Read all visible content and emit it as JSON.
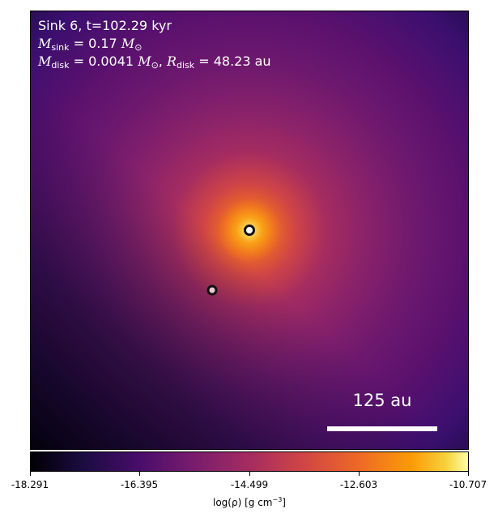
{
  "info": {
    "line1": "Sink 6, t=102.29 kyr",
    "m_sink_label": "M",
    "m_sink_sub": "sink",
    "m_sink_value": " = 0.17 ",
    "m_sun_symbol": "M",
    "sun_sub": "⊙",
    "m_disk_label": "M",
    "m_disk_sub": "disk",
    "m_disk_value": " = 0.0041 ",
    "r_disk_sep": ", ",
    "r_disk_label": "R",
    "r_disk_sub": "disk",
    "r_disk_value": " = 48.23 au"
  },
  "scalebar": {
    "label": "125 au"
  },
  "colorbar": {
    "min": -18.291,
    "max": -10.707,
    "ticks": [
      "-18.291",
      "-16.395",
      "-14.499",
      "-12.603",
      "-10.707"
    ],
    "label_prefix": "log(ρ) [g cm",
    "label_exp": "−3",
    "label_suffix": "]",
    "colormap": "inferno"
  },
  "sinks": [
    {
      "name": "primary",
      "fill": "#ffffff",
      "stroke": "#111111"
    },
    {
      "name": "secondary",
      "fill": "#f0c8d0",
      "stroke": "#111111"
    }
  ]
}
